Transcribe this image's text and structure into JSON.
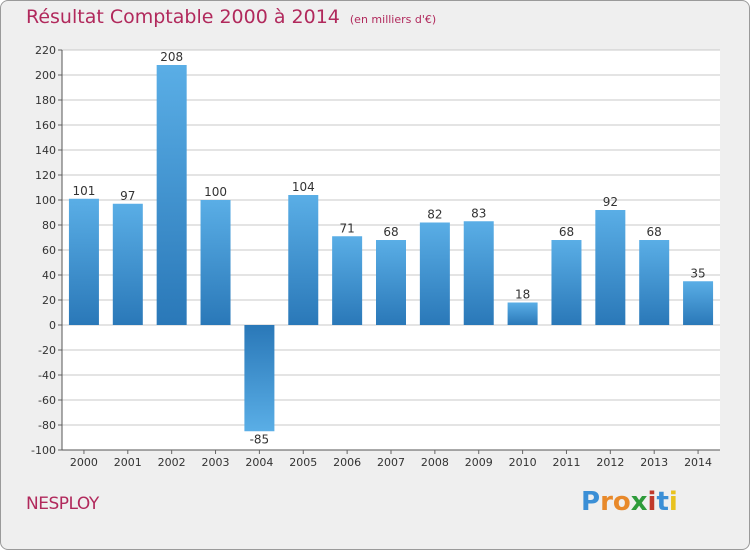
{
  "header": {
    "title": "Résultat Comptable 2000 à 2014",
    "unit": "(en milliers d'€)"
  },
  "footer": {
    "town": "NESPLOY",
    "brand_letters": [
      "P",
      "r",
      "o",
      "x",
      "i",
      "t",
      "i"
    ],
    "brand_colors": [
      "#3b8fd6",
      "#e8892a",
      "#e8892a",
      "#2e9b3a",
      "#c0392b",
      "#3b8fd6",
      "#e8c21f"
    ]
  },
  "chart_data": {
    "type": "bar",
    "title": "Résultat Comptable 2000 à 2014",
    "unit": "(en milliers d'€)",
    "xlabel": "",
    "ylabel": "",
    "categories": [
      "2000",
      "2001",
      "2002",
      "2003",
      "2004",
      "2005",
      "2006",
      "2007",
      "2008",
      "2009",
      "2010",
      "2011",
      "2012",
      "2013",
      "2014"
    ],
    "values": [
      101,
      97,
      208,
      100,
      -85,
      104,
      71,
      68,
      82,
      83,
      18,
      68,
      92,
      68,
      35
    ],
    "ylim": [
      -100,
      220
    ],
    "yticks": [
      220,
      200,
      180,
      160,
      140,
      120,
      100,
      80,
      60,
      40,
      20,
      0,
      -20,
      -40,
      -60,
      -80,
      -100
    ],
    "grid": true,
    "colors": {
      "bar_light": "#5aaee6",
      "bar_dark": "#2a78b8",
      "grid": "#c8c8c8",
      "plot_bg": "#ffffff"
    }
  }
}
